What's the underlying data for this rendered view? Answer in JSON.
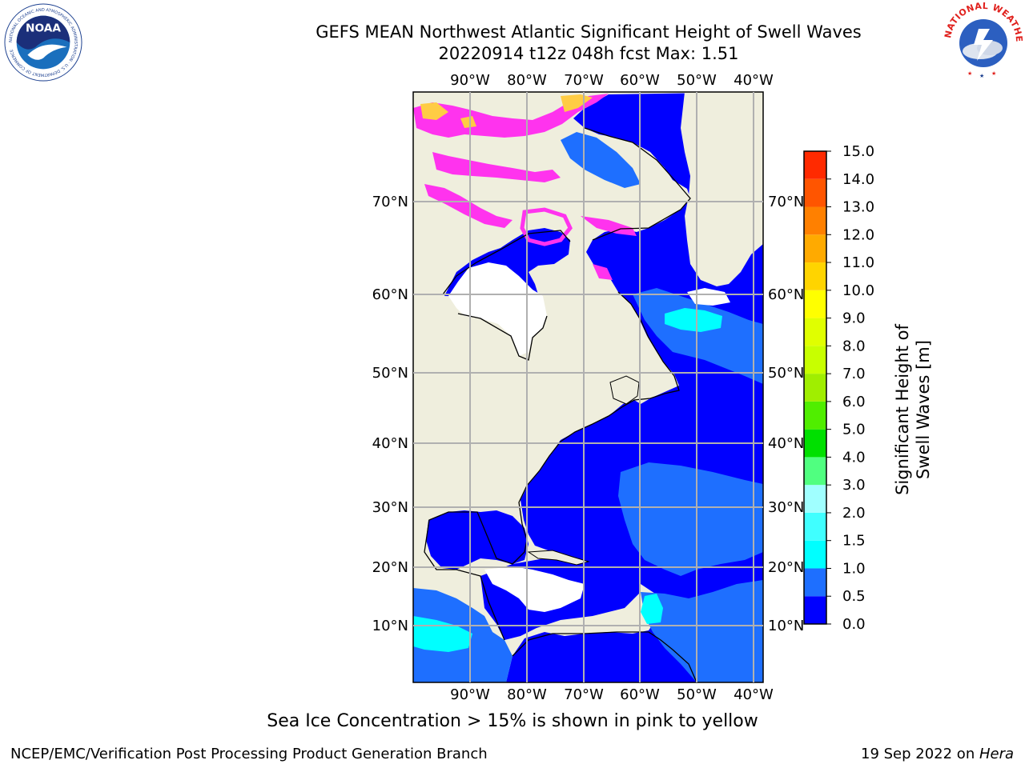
{
  "header": {
    "title_line1": "GEFS MEAN Northwest Atlantic Significant Height of Swell Waves",
    "title_line2": "20220914 t12z 048h fcst   Max: 1.51"
  },
  "logos": {
    "noaa": {
      "text": "NOAA",
      "ring_text": "NATIONAL OCEANIC AND ATMOSPHERIC ADMINISTRATION · U.S. DEPARTMENT OF COMMERCE"
    },
    "nws": {
      "ring_text": "NATIONAL WEATHER SERVICE"
    }
  },
  "map": {
    "lon_ticks": [
      "90°W",
      "80°W",
      "70°W",
      "60°W",
      "50°W",
      "40°W"
    ],
    "lat_ticks": [
      "70°N",
      "60°N",
      "50°N",
      "40°N",
      "30°N",
      "20°N",
      "10°N"
    ],
    "colors": {
      "land": "#efeedd",
      "ocean_low": "#0000ff",
      "ocean_mid": "#1e6fff",
      "ocean_high": "#00ffff",
      "ice_pink": "#ff33ee",
      "ice_yellow": "#ffcc44",
      "grid": "#b0b0b0"
    }
  },
  "colorbar": {
    "label": "Significant Height of Swell Waves [m]",
    "ticks": [
      "0.0",
      "0.5",
      "1.0",
      "1.5",
      "2.0",
      "3.0",
      "4.0",
      "5.0",
      "6.0",
      "7.0",
      "8.0",
      "9.0",
      "10.0",
      "11.0",
      "12.0",
      "13.0",
      "14.0",
      "15.0"
    ],
    "colors": [
      "#0000ff",
      "#1e6fff",
      "#00ffff",
      "#40ffff",
      "#a0ffff",
      "#50ff80",
      "#00e000",
      "#50ee00",
      "#a0ee00",
      "#c8ff00",
      "#e0ff00",
      "#ffff00",
      "#ffd400",
      "#ffaa00",
      "#ff8000",
      "#ff5500",
      "#ff2a00",
      "#ff0000"
    ]
  },
  "note": "Sea Ice Concentration > 15% is shown in pink to yellow",
  "footer": {
    "left": "NCEP/EMC/Verification Post Processing Product Generation Branch",
    "right_date": "19 Sep 2022 on ",
    "right_machine": "Hera"
  }
}
